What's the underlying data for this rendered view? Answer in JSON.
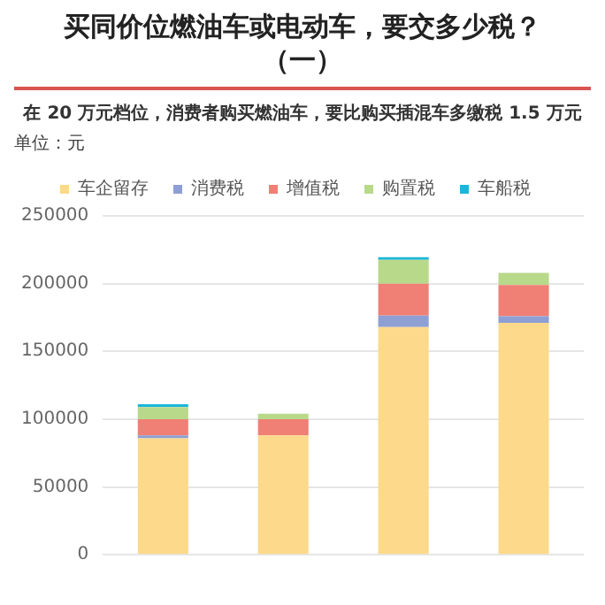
{
  "chart_data": {
    "type": "bar",
    "title": "买同价位燃油车或电动车，要交多少税？（一）",
    "subtitle": "在 20 万元档位，消费者购买燃油车，要比购买插混车多缴税 1.5 万元",
    "ylabel": "单位：元",
    "categories": [
      null,
      null,
      null,
      null
    ],
    "stacked": true,
    "series": [
      {
        "name": "车企留存",
        "color": "#fcd98b",
        "values": [
          86000,
          88000,
          168000,
          171000
        ]
      },
      {
        "name": "消费税",
        "color": "#8e9fd4",
        "values": [
          2000,
          0,
          8500,
          5000
        ]
      },
      {
        "name": "增值税",
        "color": "#f07f75",
        "values": [
          12000,
          12000,
          23500,
          23000
        ]
      },
      {
        "name": "购置税",
        "color": "#b8d98a",
        "values": [
          9000,
          4000,
          17500,
          9000
        ]
      },
      {
        "name": "车船税",
        "color": "#1bb6d8",
        "values": [
          2000,
          0,
          2000,
          0
        ]
      }
    ],
    "ylim": [
      0,
      250000
    ],
    "yticks": [
      0,
      50000,
      100000,
      150000,
      200000,
      250000
    ],
    "grid": "y",
    "legend": "top"
  }
}
